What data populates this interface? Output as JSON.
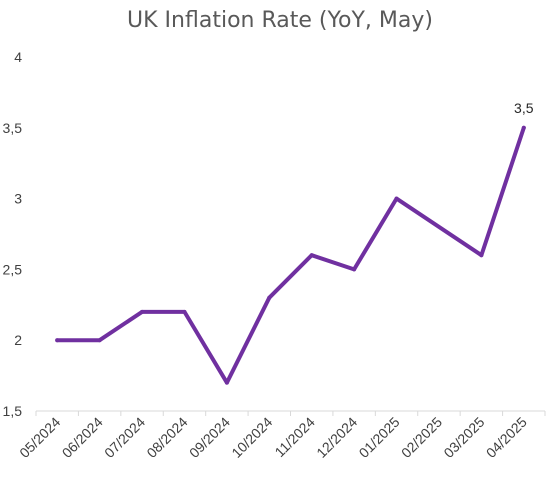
{
  "chart_data": {
    "type": "line",
    "title": "UK Inflation Rate (YoY, May)",
    "xlabel": "",
    "ylabel": "",
    "categories": [
      "05/2024",
      "06/2024",
      "07/2024",
      "08/2024",
      "09/2024",
      "10/2024",
      "11/2024",
      "12/2024",
      "01/2025",
      "02/2025",
      "03/2025",
      "04/2025"
    ],
    "series": [
      {
        "values": [
          2.0,
          2.0,
          2.2,
          2.2,
          1.7,
          2.3,
          2.6,
          2.5,
          3.0,
          null,
          2.6,
          3.5
        ]
      }
    ],
    "y_ticks": [
      "1,5",
      "2",
      "2,5",
      "3",
      "3,5",
      "4"
    ],
    "ylim": [
      1.5,
      4
    ],
    "grid": false,
    "data_labels": [
      {
        "index": 11,
        "text": "3,5"
      }
    ],
    "colors": {
      "line": "#7030a0",
      "axis": "#d9d9d9",
      "text": "#595959"
    }
  }
}
